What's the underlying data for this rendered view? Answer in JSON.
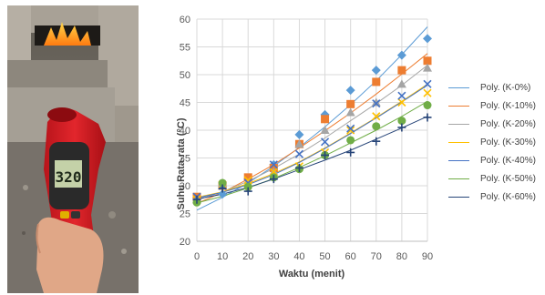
{
  "photo": {
    "thermometer_reading": "320"
  },
  "chart_data": {
    "type": "scatter",
    "xlabel": "Waktu (menit)",
    "ylabel": "Suhu Rata-rata (°C)",
    "xlim": [
      0,
      90
    ],
    "ylim": [
      20,
      60
    ],
    "x_ticks": [
      "0",
      "10",
      "20",
      "30",
      "40",
      "50",
      "60",
      "70",
      "80",
      "90"
    ],
    "y_ticks": [
      "20",
      "25",
      "30",
      "35",
      "40",
      "45",
      "50",
      "55",
      "60"
    ],
    "grid": true,
    "legend_position": "right",
    "x": [
      0,
      10,
      20,
      30,
      40,
      50,
      60,
      70,
      80,
      90
    ],
    "series": [
      {
        "name": "Poly. (K-0%)",
        "color": "#5b9bd5",
        "marker": "diamond",
        "values": [
          27.8,
          28.5,
          31.2,
          33.8,
          39.2,
          42.8,
          47.2,
          50.8,
          53.5,
          56.5
        ],
        "trend": [
          25.6,
          27.9,
          30.5,
          33.5,
          36.9,
          40.6,
          44.6,
          48.9,
          53.6,
          58.6
        ]
      },
      {
        "name": "Poly. (K-10%)",
        "color": "#ed7d31",
        "marker": "square",
        "values": [
          28.0,
          30.0,
          31.5,
          33.2,
          37.5,
          42.0,
          44.7,
          48.7,
          50.8,
          52.5
        ],
        "trend": [
          26.8,
          28.8,
          31.2,
          33.8,
          36.8,
          39.9,
          43.1,
          46.5,
          50.1,
          53.8
        ]
      },
      {
        "name": "Poly. (K-20%)",
        "color": "#a5a5a5",
        "marker": "triangle",
        "values": [
          27.5,
          30.5,
          30.5,
          32.5,
          37.5,
          40.0,
          43.2,
          45.0,
          48.3,
          51.2
        ],
        "trend": [
          27.4,
          28.9,
          30.8,
          33.1,
          35.7,
          38.6,
          41.7,
          44.8,
          48.1,
          51.7
        ]
      },
      {
        "name": "Poly. (K-30%)",
        "color": "#ffc000",
        "marker": "x",
        "values": [
          27.5,
          30.2,
          31.0,
          32.5,
          33.5,
          36.0,
          40.0,
          42.5,
          45.0,
          46.7
        ],
        "trend": [
          27.9,
          28.9,
          30.4,
          32.2,
          34.3,
          36.8,
          39.5,
          42.3,
          45.2,
          48.3
        ]
      },
      {
        "name": "Poly. (K-40%)",
        "color": "#4472c4",
        "marker": "x",
        "values": [
          28.0,
          30.0,
          30.5,
          33.8,
          35.7,
          37.9,
          40.3,
          44.8,
          46.2,
          48.3
        ],
        "trend": [
          27.8,
          28.8,
          30.2,
          32.0,
          34.2,
          36.7,
          39.4,
          42.2,
          45.1,
          48.1
        ]
      },
      {
        "name": "Poly. (K-50%)",
        "color": "#70ad47",
        "marker": "circle",
        "values": [
          27.0,
          30.5,
          29.8,
          31.5,
          33.0,
          35.5,
          38.2,
          40.7,
          41.7,
          44.5
        ],
        "trend": [
          26.9,
          28.1,
          29.6,
          31.3,
          33.3,
          35.4,
          37.7,
          40.0,
          42.5,
          45.2
        ]
      },
      {
        "name": "Poly. (K-60%)",
        "color": "#264478",
        "marker": "plus",
        "values": [
          27.5,
          29.5,
          29.0,
          31.2,
          33.2,
          35.5,
          36.0,
          38.0,
          40.5,
          42.3
        ],
        "trend": [
          27.6,
          28.5,
          29.7,
          31.2,
          32.9,
          34.6,
          36.4,
          38.4,
          40.4,
          42.5
        ]
      }
    ]
  }
}
